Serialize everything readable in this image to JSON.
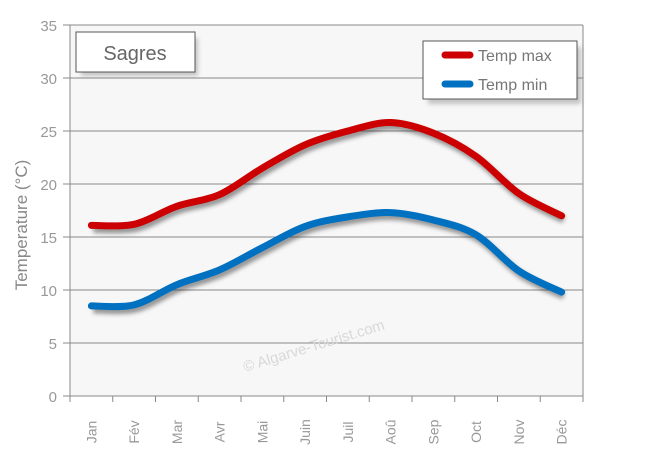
{
  "chart_data": {
    "type": "line",
    "title": "Sagres",
    "xlabel": "",
    "ylabel": "Temperature (°C)",
    "ylim": [
      0,
      35
    ],
    "yticks": [
      0,
      5,
      10,
      15,
      20,
      25,
      30,
      35
    ],
    "grid": true,
    "legend_position": "top-right",
    "categories": [
      "Jan",
      "Fév",
      "Mar",
      "Avr",
      "Mai",
      "Juin",
      "Juil",
      "Aoû",
      "Sep",
      "Oct",
      "Nov",
      "Déc"
    ],
    "series": [
      {
        "name": "Temp max",
        "color": "#cc0000",
        "values": [
          16.1,
          16.2,
          17.9,
          19.0,
          21.5,
          23.7,
          25.0,
          25.8,
          24.8,
          22.6,
          19.1,
          17.0
        ]
      },
      {
        "name": "Temp min",
        "color": "#0070c0",
        "values": [
          8.5,
          8.6,
          10.5,
          11.9,
          14.0,
          16.0,
          16.9,
          17.3,
          16.6,
          15.2,
          11.8,
          9.8
        ]
      }
    ],
    "watermark": "© Algarve-Tourist.com"
  }
}
